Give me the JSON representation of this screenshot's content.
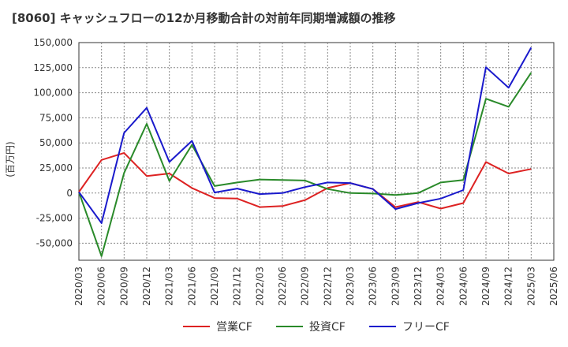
{
  "chart_data": {
    "type": "line",
    "title": "[8060]  キャッシュフローの12か月移動合計の対前年同期増減額の推移",
    "ylabel": "(百万円)",
    "xlabel": "",
    "ylim": [
      -67000,
      150000
    ],
    "yticks": [
      150000,
      125000,
      100000,
      75000,
      50000,
      25000,
      0,
      -25000,
      -50000
    ],
    "ytick_labels": [
      "150,000",
      "125,000",
      "100,000",
      "75,000",
      "50,000",
      "25,000",
      "0",
      "-25,000",
      "-50,000"
    ],
    "x_tick_labels": [
      "2020/03",
      "2020/06",
      "2020/09",
      "2020/12",
      "2021/03",
      "2021/06",
      "2021/09",
      "2021/12",
      "2022/03",
      "2022/06",
      "2022/09",
      "2022/12",
      "2023/03",
      "2023/06",
      "2023/09",
      "2023/12",
      "2024/03",
      "2024/06",
      "2024/09",
      "2024/12",
      "2025/03",
      "2025/06"
    ],
    "grid": true,
    "legend_position": "bottom",
    "series": [
      {
        "name": "営業CF",
        "color": "#dd2222",
        "values": [
          1000,
          33000,
          40000,
          17000,
          19500,
          5000,
          -5000,
          -5500,
          -14000,
          -13000,
          -7000,
          5000,
          10000,
          4000,
          -14000,
          -9000,
          -15500,
          -10000,
          31000,
          19500,
          24000
        ]
      },
      {
        "name": "投資CF",
        "color": "#2a8a2a",
        "values": [
          1000,
          -63000,
          20000,
          69000,
          12000,
          48000,
          7000,
          10500,
          13500,
          13000,
          12500,
          4000,
          0,
          -500,
          -2000,
          0,
          10500,
          13000,
          94000,
          86000,
          120000
        ]
      },
      {
        "name": "フリーCF",
        "color": "#1a1acc",
        "values": [
          1000,
          -30000,
          60000,
          85000,
          31000,
          52000,
          500,
          4500,
          -1000,
          0,
          6000,
          10500,
          10000,
          4000,
          -16000,
          -10000,
          -5500,
          3000,
          125500,
          105000,
          145000
        ]
      }
    ]
  }
}
